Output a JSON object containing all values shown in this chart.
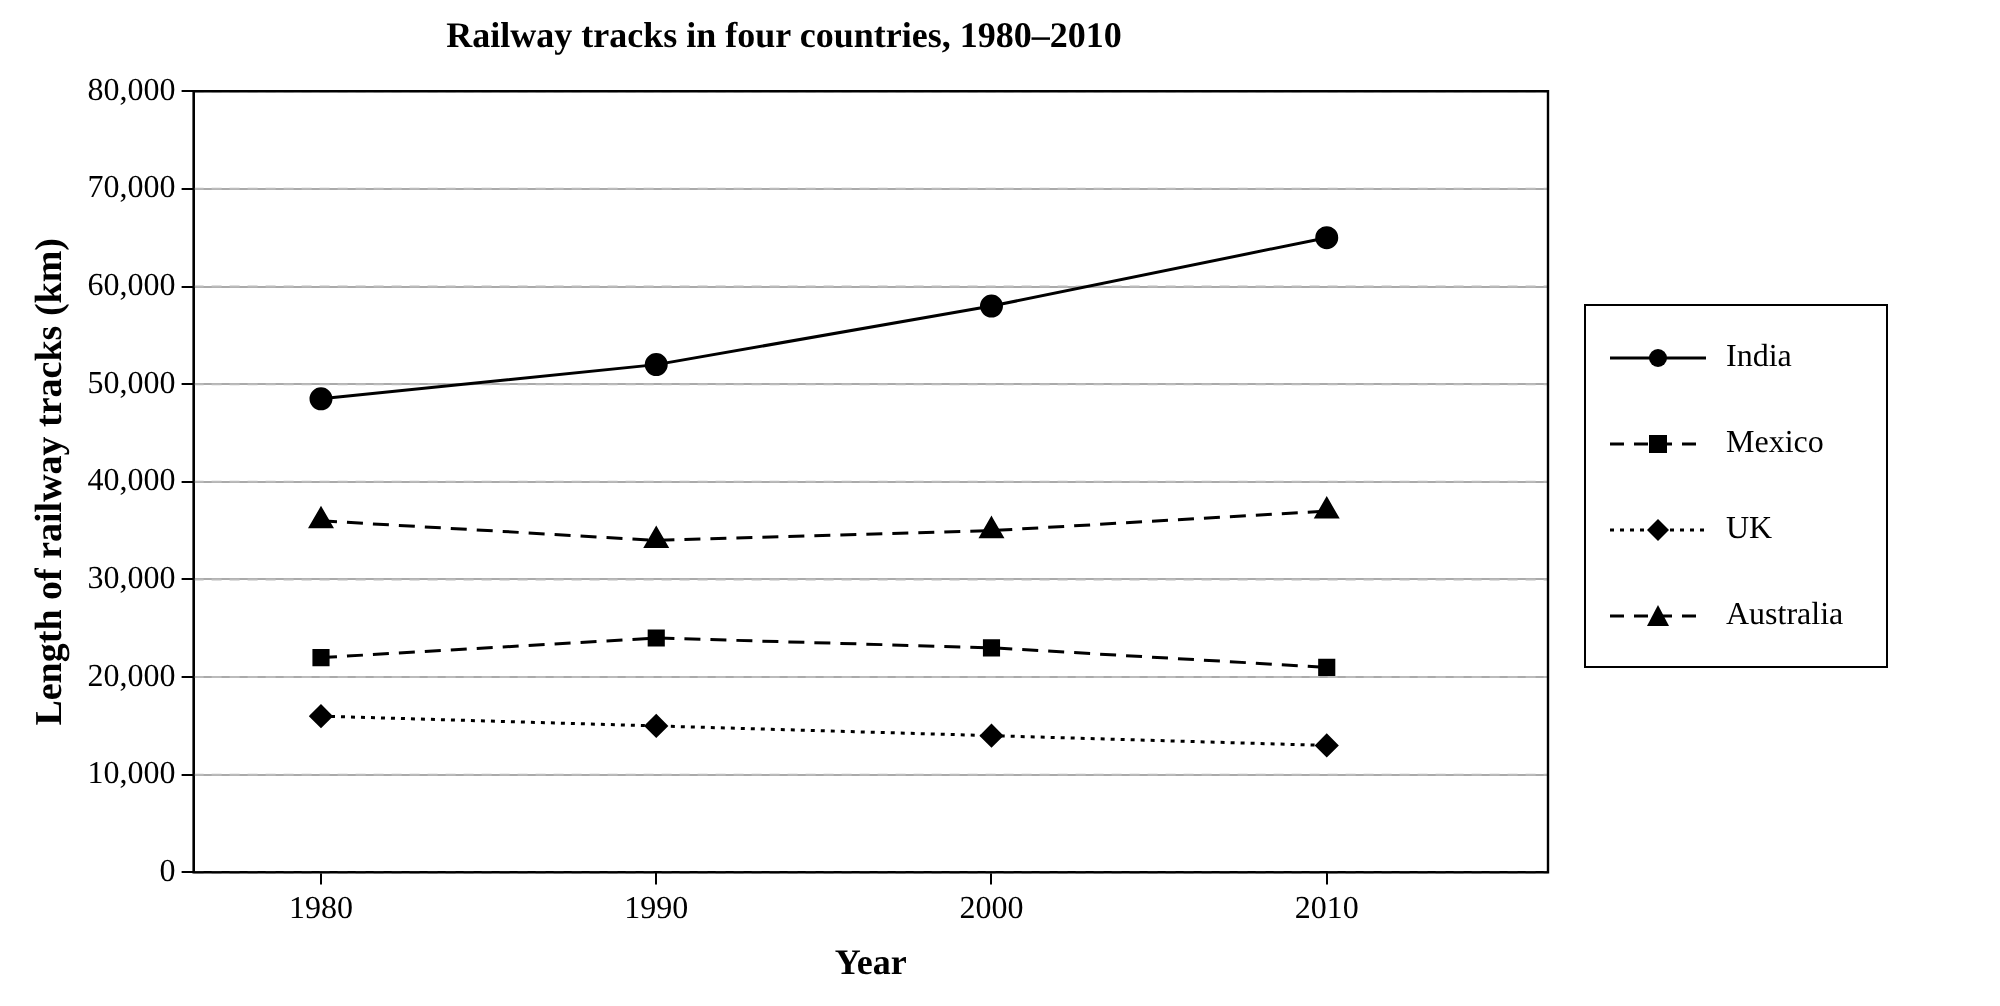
{
  "chart_data": {
    "type": "line",
    "title": "Railway tracks in four countries, 1980–2010",
    "xlabel": "Year",
    "ylabel": "Length of railway tracks (km)",
    "x": [
      1980,
      1990,
      2000,
      2010
    ],
    "series": [
      {
        "name": "India",
        "color": "#000000",
        "marker": "circle",
        "line_style": "solid",
        "values": [
          48500,
          52000,
          58000,
          65000
        ]
      },
      {
        "name": "Mexico",
        "color": "#000000",
        "marker": "square",
        "line_style": "dashed",
        "values": [
          22000,
          24000,
          23000,
          21000
        ]
      },
      {
        "name": "UK",
        "color": "#000000",
        "marker": "diamond",
        "line_style": "dotted",
        "values": [
          16000,
          15000,
          14000,
          13000
        ]
      },
      {
        "name": "Australia",
        "color": "#000000",
        "marker": "triangle",
        "line_style": "dashed",
        "values": [
          36000,
          34000,
          35000,
          37000
        ]
      }
    ],
    "xlim": [
      1976.2,
      2016.6
    ],
    "xticks": [
      1980,
      1990,
      2000,
      2010
    ],
    "ylim": [
      0,
      80000
    ],
    "yticks": [
      0,
      {
        "value": 10000,
        "label": "10,000"
      },
      {
        "value": 20000,
        "label": "20,000"
      },
      {
        "value": 30000,
        "label": "30,000"
      },
      {
        "value": 40000,
        "label": "40,000"
      },
      {
        "value": 50000,
        "label": "50,000"
      },
      {
        "value": 60000,
        "label": "60,000"
      },
      {
        "value": 70000,
        "label": "70,000"
      },
      {
        "value": 80000,
        "label": "80,000"
      }
    ],
    "grid": "y",
    "legend": "right"
  }
}
